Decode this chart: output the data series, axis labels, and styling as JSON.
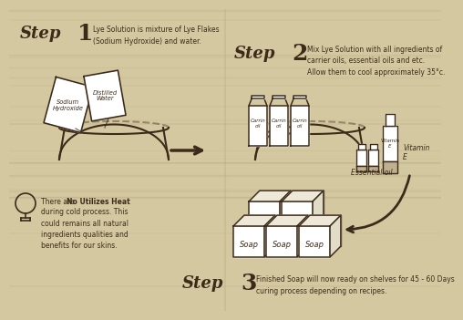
{
  "bg_color": "#d4c8a0",
  "dark_color": "#3d2b1a",
  "step1_title_word": "Step",
  "step1_num": "1",
  "step1_desc": "Lye Solution is mixture of Lye Flakes\n(Sodium Hydroxide) and water.",
  "step2_title_word": "Step",
  "step2_num": "2",
  "step2_desc": "Mix Lye Solution with all ingredients of\ncarrier oils, essential oils and etc.\nAllow them to cool approximately 35°c.",
  "step3_title_word": "Step",
  "step3_num": "3",
  "step3_desc": "Finished Soap will now ready on shelves for 45 - 60 Days\ncuring process depending on recipes.",
  "note_pre": "There are ",
  "note_bold": "No Utilizes Heat",
  "note_rest": "during cold process. This\ncould remains all natural\ningredients qualities and\nbenefits for our skins.",
  "label_sodium": "Sodium\nHydroxide",
  "label_water": "Distilled\nWater",
  "label_carrin": "Carrin\noil",
  "label_vitamin": "Vitamin\nE",
  "label_essential": "Essential oıl",
  "label_soap": "Soap",
  "step_word_size": 13,
  "step_num_size": 16,
  "desc_size": 5.5,
  "note_size": 5.5
}
